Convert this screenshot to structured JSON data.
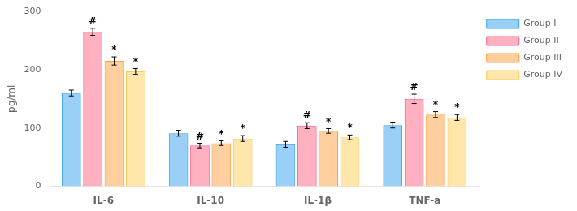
{
  "chart_data": {
    "type": "bar",
    "categories": [
      "IL-6",
      "IL-10",
      "IL-1β",
      "TNF-a"
    ],
    "series": [
      {
        "name": "Group I",
        "values": [
          160,
          91,
          72,
          105
        ],
        "errors": [
          5,
          5,
          5,
          5
        ]
      },
      {
        "name": "Group II",
        "values": [
          265,
          70,
          104,
          150
        ],
        "errors": [
          6,
          4,
          5,
          8
        ],
        "annotations": [
          "#",
          "#",
          "#",
          "#"
        ]
      },
      {
        "name": "Group III",
        "values": [
          215,
          74,
          95,
          123
        ],
        "errors": [
          7,
          4,
          4,
          5
        ],
        "annotations": [
          "*",
          "*",
          "*",
          "*"
        ]
      },
      {
        "name": "Group IV",
        "values": [
          197,
          82,
          84,
          118
        ],
        "errors": [
          5,
          5,
          4,
          5
        ],
        "annotations": [
          "*",
          "*",
          "*",
          "*"
        ]
      }
    ],
    "ylabel": "pg/ml",
    "ylim": [
      0,
      300
    ],
    "yticks": [
      0,
      100,
      200,
      300
    ],
    "grid": false,
    "legend": "right"
  }
}
